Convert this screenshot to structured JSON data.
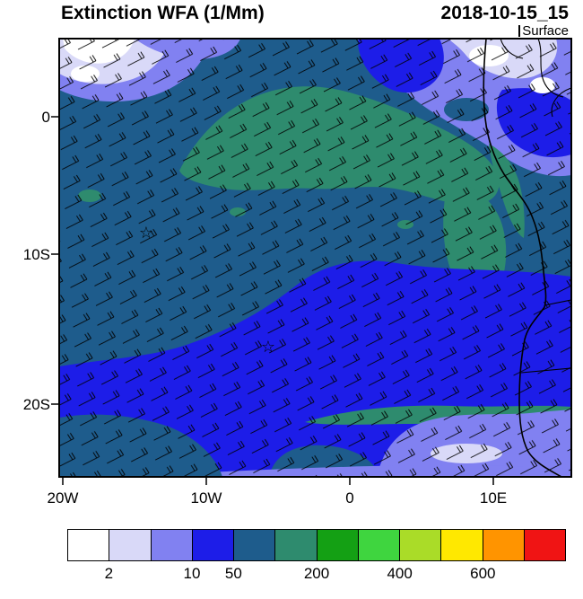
{
  "header": {
    "title": "Extinction WFA (1/Mm)",
    "datetime": "2018-10-15_15",
    "level": "Surface"
  },
  "axes": {
    "x_labels": [
      "20W",
      "10W",
      "0",
      "10E"
    ],
    "y_labels": [
      "0",
      "10S",
      "20S"
    ]
  },
  "colors": {
    "white": "#ffffff",
    "pale_lavender": "#d9d9f8",
    "lavender": "#8181f1",
    "bright_blue": "#1d1de8",
    "dark_blue": "#1e5c8c",
    "sea_green": "#2e8b6e",
    "green": "#14a014",
    "bright_green": "#3fd53f",
    "yellow_green": "#aadc28",
    "yellow": "#ffe800",
    "orange": "#ff9400",
    "red": "#f01414",
    "outline": "#000000"
  },
  "colorbar": {
    "colors": [
      "#ffffff",
      "#d9d9f8",
      "#8181f1",
      "#1d1de8",
      "#1e5c8c",
      "#2e8b6e",
      "#14a014",
      "#3fd53f",
      "#aadc28",
      "#ffe800",
      "#ff9400",
      "#f01414"
    ],
    "ticks": [
      {
        "label": "2",
        "boundary": 1
      },
      {
        "label": "10",
        "boundary": 3
      },
      {
        "label": "50",
        "boundary": 4
      },
      {
        "label": "200",
        "boundary": 6
      },
      {
        "label": "400",
        "boundary": 8
      },
      {
        "label": "600",
        "boundary": 10
      }
    ]
  },
  "chart_data": {
    "type": "heatmap",
    "title": "Extinction WFA (1/Mm)",
    "datetime": "2018-10-15_15",
    "level": "Surface",
    "units": "1/Mm",
    "x_axis": {
      "tick_labels": [
        "20W",
        "10W",
        "0",
        "10E"
      ],
      "range_deg_lon": [
        -20.3,
        15.4
      ]
    },
    "y_axis": {
      "tick_labels": [
        "0",
        "10S",
        "20S"
      ],
      "range_deg_lat": [
        5.3,
        -24.8
      ]
    },
    "colorbar": {
      "n_bins": 12,
      "labeled_levels": [
        2,
        10,
        50,
        200,
        400,
        600
      ],
      "estimated_all_levels": [
        2,
        5,
        10,
        50,
        100,
        200,
        300,
        400,
        500,
        600,
        700
      ],
      "bin_colors": [
        "#ffffff",
        "#d9d9f8",
        "#8181f1",
        "#1d1de8",
        "#1e5c8c",
        "#2e8b6e",
        "#14a014",
        "#3fd53f",
        "#aadc28",
        "#ffe800",
        "#ff9400",
        "#f01414"
      ]
    },
    "overlays": [
      "wind-barbs",
      "coastline",
      "country-borders",
      "star-markers"
    ],
    "markers": [
      {
        "symbol": "star",
        "lon": -14.2,
        "lat": -7.7
      },
      {
        "symbol": "star",
        "lon": -5.7,
        "lat": -15.3
      }
    ],
    "field_regions": [
      {
        "area": "equatorial band ~0 to 5S across mid-ocean",
        "value_bin": "100-200",
        "color": "sea_green"
      },
      {
        "area": "central ocean ~5S to 13S",
        "value_bin": "50-100",
        "color": "dark_blue"
      },
      {
        "area": "southern ocean ~13S to 24S",
        "value_bin": "10-50",
        "color": "bright_blue"
      },
      {
        "area": "northwest corner",
        "value_bin": "<2 to 5",
        "color": "white / pale_lavender"
      },
      {
        "area": "northeast Gulf of Guinea / Congo coast",
        "value_bin": "2-10 with <2 patches",
        "color": "lavender / white"
      },
      {
        "area": "southeast corner",
        "value_bin": "5-10",
        "color": "lavender"
      },
      {
        "area": "Angola / Congo coastal strip",
        "value_bin": "100-200",
        "color": "sea_green"
      }
    ]
  }
}
